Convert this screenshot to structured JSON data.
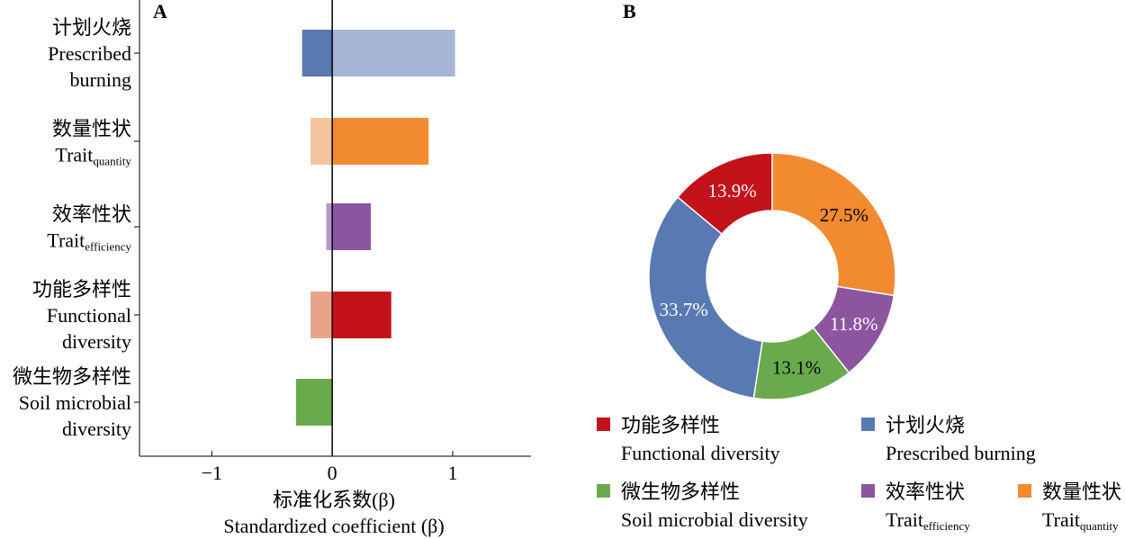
{
  "chart_data": [
    {
      "type": "bar",
      "orientation": "horizontal",
      "panel_label": "A",
      "categories": [
        {
          "zh": "计划火烧",
          "en": [
            "Prescribed",
            "burning"
          ],
          "sub": ""
        },
        {
          "zh": "数量性状",
          "en": [
            "Trait"
          ],
          "sub": "quantity"
        },
        {
          "zh": "效率性状",
          "en": [
            "Trait"
          ],
          "sub": "efficiency"
        },
        {
          "zh": "功能多样性",
          "en": [
            "Functional",
            "diversity"
          ],
          "sub": ""
        },
        {
          "zh": "微生物多样性",
          "en": [
            "Soil microbial",
            "diversity"
          ],
          "sub": ""
        }
      ],
      "series": [
        {
          "values": [
            -0.25,
            -0.18,
            -0.05,
            -0.18,
            -0.3
          ],
          "colors": [
            "#5879b2",
            "#f6c49c",
            "#b39acb",
            "#e8a38a",
            "#6aaa4c"
          ]
        },
        {
          "values": [
            1.02,
            0.8,
            0.32,
            0.49,
            0
          ],
          "colors": [
            "#a7b6d6",
            "#f28a30",
            "#8d54a0",
            "#c4121b",
            "#6aaa4c"
          ]
        }
      ],
      "xlim": [
        -1.6,
        1.65
      ],
      "xticks": [
        -1,
        0,
        1
      ],
      "xtick_labels": [
        "−1",
        "0",
        "1"
      ],
      "xlabel_zh": "标准化系数(β)",
      "xlabel_en": "Standardized coefficient (β)"
    },
    {
      "type": "pie",
      "donut": true,
      "panel_label": "B",
      "slices": [
        {
          "key": "trait_quantity",
          "value": 27.5,
          "label": "27.5%",
          "color": "#f28a30",
          "text_color": "#000000"
        },
        {
          "key": "trait_efficiency",
          "value": 11.8,
          "label": "11.8%",
          "color": "#8d54a0",
          "text_color": "#ffffff"
        },
        {
          "key": "soil_microbial",
          "value": 13.1,
          "label": "13.1%",
          "color": "#6aaa4c",
          "text_color": "#000000"
        },
        {
          "key": "prescribed_burning",
          "value": 33.7,
          "label": "33.7%",
          "color": "#5879b2",
          "text_color": "#ffffff"
        },
        {
          "key": "functional_diversity",
          "value": 13.9,
          "label": "13.9%",
          "color": "#c4121b",
          "text_color": "#ffffff"
        }
      ],
      "legend": [
        {
          "zh": "功能多样性",
          "en": "Functional diversity",
          "sub": "",
          "color": "#c4121b"
        },
        {
          "zh": "计划火烧",
          "en": "Prescribed burning",
          "sub": "",
          "color": "#5879b2"
        },
        {
          "zh": "微生物多样性",
          "en": "Soil microbial diversity",
          "sub": "",
          "color": "#6aaa4c"
        },
        {
          "zh": "效率性状",
          "en": "Trait",
          "sub": "efficiency",
          "color": "#8d54a0"
        },
        {
          "zh": "数量性状",
          "en": "Trait",
          "sub": "quantity",
          "color": "#f28a30"
        }
      ]
    }
  ]
}
